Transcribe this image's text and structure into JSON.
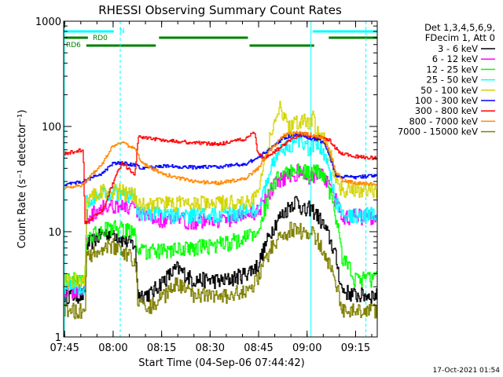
{
  "chart_data": {
    "type": "line",
    "title": "RHESSI Observing Summary Count Rates",
    "xlabel": "Start Time (04-Sep-06 07:44:42)",
    "ylabel": "Count Rate (s⁻¹ detector⁻¹)",
    "x_ticks": [
      "07:45",
      "08:00",
      "08:15",
      "08:30",
      "08:45",
      "09:00",
      "09:15"
    ],
    "x_tick_minutes": [
      0.3,
      15.3,
      30.3,
      45.3,
      60.3,
      75.3,
      90.3
    ],
    "xlim_minutes": [
      0,
      97
    ],
    "y_scale": "log",
    "ylim": [
      1,
      1000
    ],
    "y_ticks": [
      "1",
      "10",
      "100",
      "1000"
    ],
    "legend_header": [
      "Det 1,3,4,5,6,9,",
      "FDecim 1, Att 0"
    ],
    "series": [
      {
        "name": "3 - 6 keV",
        "color": "#000000",
        "x": [
          0,
          6.5,
          7,
          12,
          15,
          18,
          22,
          23,
          27,
          30,
          35,
          40,
          45,
          49,
          52,
          56,
          60,
          62,
          64,
          66,
          68,
          70,
          72,
          73,
          75,
          76,
          78,
          80,
          82,
          84,
          86,
          90,
          97
        ],
        "y": [
          2.5,
          2.5,
          7.5,
          9.5,
          10,
          8.5,
          7.5,
          2.5,
          2.6,
          3.3,
          4.5,
          3.5,
          3.5,
          3.4,
          3.6,
          4,
          4.8,
          7,
          10,
          13,
          15,
          18,
          20,
          18,
          15,
          17,
          15,
          12,
          9,
          6,
          2.8,
          2.5,
          2.5
        ]
      },
      {
        "name": "6 - 12 keV",
        "color": "#ff00ff",
        "x": [
          0,
          6.5,
          7,
          12,
          15,
          18,
          22,
          23,
          30,
          40,
          50,
          56,
          60,
          62,
          64,
          66,
          68,
          70,
          72,
          74,
          76,
          78,
          80,
          82,
          84,
          86,
          97
        ],
        "y": [
          2.8,
          2.8,
          14,
          17.5,
          18,
          17.5,
          16.5,
          14.5,
          13,
          12.7,
          13.2,
          14.5,
          16,
          20,
          25,
          30,
          33,
          35,
          37,
          36,
          34,
          36,
          34,
          28,
          20,
          14,
          14
        ]
      },
      {
        "name": "12 - 25 keV",
        "color": "#00ff00",
        "x": [
          0,
          6.5,
          7,
          12,
          15,
          18,
          22,
          23,
          30,
          40,
          50,
          56,
          60,
          62,
          64,
          66,
          68,
          70,
          72,
          74,
          76,
          78,
          80,
          82,
          84,
          86,
          90,
          97
        ],
        "y": [
          3.5,
          3.5,
          8.5,
          10.5,
          11,
          10.5,
          10,
          6.5,
          6.5,
          7,
          7.8,
          8.8,
          10,
          16,
          25,
          32,
          35,
          38,
          40,
          38,
          35,
          38,
          36,
          25,
          15,
          6,
          3.6,
          3.6
        ]
      },
      {
        "name": "25 - 50 keV",
        "color": "#00ffff",
        "x": [
          0,
          6.5,
          7,
          12,
          15,
          18,
          22,
          23,
          30,
          40,
          50,
          56,
          60,
          62,
          64,
          66,
          68,
          70,
          72,
          74,
          76,
          78,
          80,
          82,
          84,
          86,
          90,
          97
        ],
        "y": [
          3,
          3,
          20,
          23,
          24,
          23,
          21,
          15,
          14.5,
          14.3,
          14.6,
          15.5,
          17,
          25,
          40,
          55,
          62,
          68,
          72,
          68,
          62,
          68,
          62,
          40,
          20,
          14.5,
          14.5,
          14.5
        ]
      },
      {
        "name": "50 - 100 keV",
        "color": "#d4d400",
        "x": [
          0,
          6.5,
          7,
          12,
          15,
          18,
          22,
          23,
          30,
          40,
          50,
          56,
          60,
          62,
          64,
          66,
          67,
          68,
          70,
          72,
          74,
          76,
          77,
          78,
          80,
          82,
          84,
          86,
          90,
          97
        ],
        "y": [
          3.5,
          3.5,
          21,
          24,
          25,
          24,
          22,
          19,
          18.5,
          18.5,
          19,
          19.5,
          22,
          50,
          80,
          130,
          160,
          120,
          100,
          110,
          120,
          110,
          125,
          90,
          80,
          60,
          35,
          25,
          25,
          25
        ]
      },
      {
        "name": "100 - 300 keV",
        "color": "#0000ff",
        "x": [
          0,
          6,
          12,
          15,
          18,
          22,
          24,
          30,
          40,
          48,
          56,
          60,
          64,
          68,
          72,
          76,
          80,
          82,
          84,
          86,
          90,
          97
        ],
        "y": [
          28,
          30,
          36,
          44,
          45,
          43,
          40,
          42,
          41,
          41.5,
          44,
          50,
          62,
          78,
          85,
          78,
          72,
          55,
          35,
          33,
          33,
          34
        ]
      },
      {
        "name": "300 - 800 keV",
        "color": "#ff0000",
        "x": [
          0,
          6,
          6.5,
          12,
          15,
          18,
          22,
          23,
          30,
          40,
          48,
          56,
          59,
          60,
          62,
          66,
          70,
          74,
          78,
          82,
          85,
          86,
          90,
          97
        ],
        "y": [
          55,
          60,
          12,
          16,
          28,
          45,
          35,
          80,
          75,
          70,
          68,
          76,
          90,
          55,
          50,
          60,
          75,
          85,
          80,
          75,
          58,
          55,
          52,
          50
        ]
      },
      {
        "name": "800 - 7000 keV",
        "color": "#ff8800",
        "x": [
          0,
          6,
          12,
          15,
          18,
          22,
          24,
          30,
          40,
          48,
          56,
          60,
          64,
          68,
          72,
          76,
          80,
          82,
          84,
          86,
          90,
          97
        ],
        "y": [
          26,
          28,
          45,
          64,
          70,
          62,
          45,
          36,
          30,
          29,
          32,
          40,
          60,
          82,
          88,
          84,
          78,
          60,
          38,
          31,
          29,
          28
        ]
      },
      {
        "name": "7000 - 15000 keV",
        "color": "#808000",
        "x": [
          0,
          6.5,
          7,
          12,
          15,
          18,
          22,
          23,
          27,
          30,
          35,
          40,
          45,
          49,
          52,
          56,
          60,
          62,
          64,
          66,
          68,
          70,
          72,
          73,
          75,
          76,
          78,
          80,
          82,
          84,
          86,
          90,
          97
        ],
        "y": [
          1.8,
          1.8,
          5.5,
          7,
          7.5,
          6.5,
          5.5,
          2,
          2,
          2.3,
          3.2,
          2.5,
          2.5,
          2.4,
          2.6,
          2.8,
          3.5,
          5,
          7,
          8.5,
          9.5,
          10.5,
          11,
          10.5,
          9,
          10,
          9,
          7,
          5,
          3.5,
          1.8,
          1.8,
          1.8
        ]
      }
    ],
    "flags": [
      {
        "label": "N",
        "color": "#00ffff",
        "segments": [
          [
            0,
            15.5
          ],
          [
            77,
            97
          ]
        ]
      },
      {
        "label": "RD0",
        "color": "#008000",
        "segments": [
          [
            0,
            7.5
          ],
          [
            29.5,
            57
          ],
          [
            82,
            97
          ]
        ]
      },
      {
        "label": "RD6",
        "color": "#008000",
        "segments": [
          [
            7,
            28.5
          ],
          [
            57.5,
            77.5
          ]
        ]
      }
    ],
    "vlines_solid_minutes": [
      0.2,
      76.5
    ],
    "vlines_dashed_minutes": [
      17.5,
      93.5
    ],
    "vline_color": "#00ffff",
    "footer": "17-Oct-2021 01:54"
  }
}
